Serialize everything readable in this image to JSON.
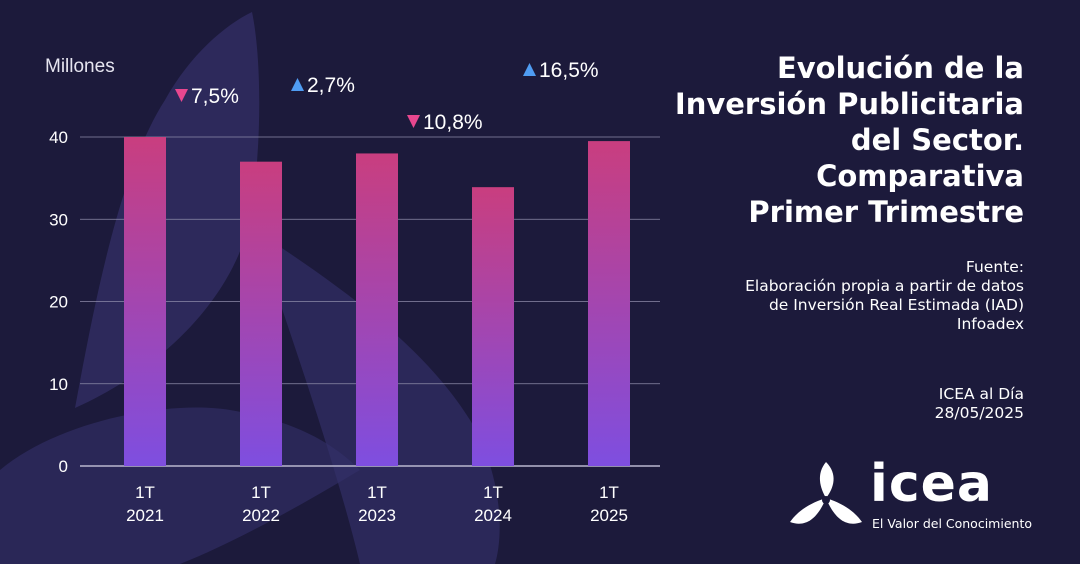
{
  "colors": {
    "background": "#1c1a3b",
    "bar_top": "#c93e7f",
    "bar_bottom": "#7e4ee0",
    "arrow_down": "#e8478f",
    "arrow_up": "#4f9cf2",
    "grid": "#8d8aa8"
  },
  "chart_data": {
    "type": "bar",
    "ylabel": "Millones",
    "ylim": [
      0,
      40
    ],
    "yticks": [
      0,
      10,
      20,
      30,
      40
    ],
    "categories": [
      [
        "1T",
        "2021"
      ],
      [
        "1T",
        "2022"
      ],
      [
        "1T",
        "2023"
      ],
      [
        "1T",
        "2024"
      ],
      [
        "1T",
        "2025"
      ]
    ],
    "values": [
      40,
      37,
      38,
      33.9,
      39.5
    ],
    "grid": true,
    "annotations": [
      {
        "text": "7,5%",
        "direction": "down",
        "between": [
          "2021",
          "2022"
        ]
      },
      {
        "text": "2,7%",
        "direction": "up",
        "between": [
          "2022",
          "2023"
        ]
      },
      {
        "text": "10,8%",
        "direction": "down",
        "between": [
          "2023",
          "2024"
        ]
      },
      {
        "text": "16,5%",
        "direction": "up",
        "between": [
          "2024",
          "2025"
        ]
      }
    ]
  },
  "title": "Evolución de la\nInversión Publicitaria\ndel Sector.\nComparativa\nPrimer Trimestre",
  "source": {
    "label": "Fuente:",
    "line1": "Elaboración propia a partir de datos",
    "line2": "de Inversión Real Estimada (IAD)",
    "line3": "Infoadex"
  },
  "publication": {
    "name": "ICEA al Día",
    "date": "28/05/2025"
  },
  "logo": {
    "icon": "icea-logo-icon",
    "wordmark": "icea",
    "tagline": "El Valor del Conocimiento"
  }
}
